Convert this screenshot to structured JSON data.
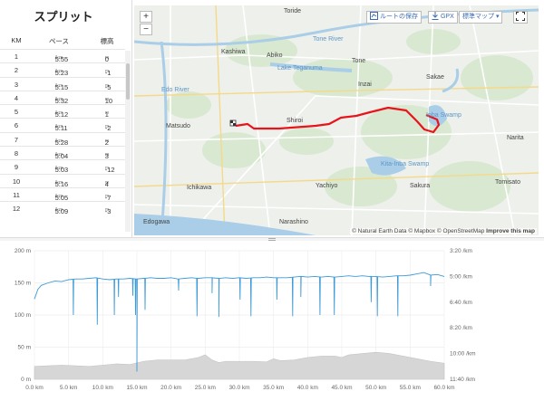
{
  "splits": {
    "title": "スプリット",
    "headers": {
      "km": "KM",
      "pace": "ペース",
      "elev": "標高"
    },
    "pace_unit": "/km",
    "elev_unit": "m",
    "rows": [
      {
        "km": "1",
        "pace": "5:55",
        "elev": "0"
      },
      {
        "km": "2",
        "pace": "5:23",
        "elev": "-1"
      },
      {
        "km": "3",
        "pace": "5:15",
        "elev": "-5"
      },
      {
        "km": "4",
        "pace": "5:32",
        "elev": "10"
      },
      {
        "km": "5",
        "pace": "5:12",
        "elev": "1"
      },
      {
        "km": "6",
        "pace": "5:11",
        "elev": "-2"
      },
      {
        "km": "7",
        "pace": "5:28",
        "elev": "2"
      },
      {
        "km": "8",
        "pace": "5:04",
        "elev": "3"
      },
      {
        "km": "9",
        "pace": "5:03",
        "elev": "-12"
      },
      {
        "km": "10",
        "pace": "5:16",
        "elev": "4"
      },
      {
        "km": "11",
        "pace": "5:05",
        "elev": "-7"
      },
      {
        "km": "12",
        "pace": "5:09",
        "elev": "-3"
      }
    ]
  },
  "map": {
    "zoom_in": "+",
    "zoom_out": "−",
    "save_route": "ルートの保存",
    "gpx": "GPX",
    "map_type": "標準マップ",
    "attribution": {
      "natural_earth": "© Natural Earth Data",
      "mapbox": "© Mapbox",
      "osm": "© OpenStreetMap",
      "improve": "Improve this map"
    },
    "labels": {
      "toride": "Toride",
      "kashiwa": "Kashiwa",
      "abiko": "Abiko",
      "tone": "Tone",
      "tone_river": "Tone River",
      "lake_teganuma": "Lake Teganuma",
      "sakae": "Sakae",
      "edo_river": "Edo River",
      "inzai": "Inzai",
      "matsudo": "Matsudo",
      "shiroi": "Shiroi",
      "inba_swamp": "Inba Swamp",
      "narita": "Narita",
      "ichikawa": "Ichikawa",
      "yachiyo": "Yachiyo",
      "sakura": "Sakura",
      "tomisato": "Tomisato",
      "edogawa": "Edogawa",
      "narashino": "Narashino",
      "kita_inba_swamp": "Kita-Inba Swamp"
    },
    "colors": {
      "route": "#e8141b",
      "water": "#aacde8",
      "land": "#eef0ec",
      "green": "#d8e8cf"
    }
  },
  "chart_data": {
    "type": "line",
    "x_label_unit": "km",
    "x_ticks": [
      "0.0 km",
      "5.0 km",
      "10.0 km",
      "15.0 km",
      "20.0 km",
      "25.0 km",
      "30.0 km",
      "35.0 km",
      "40.0 km",
      "45.0 km",
      "50.0 km",
      "55.0 km",
      "60.0 km"
    ],
    "y_left_ticks": [
      "200 m",
      "150 m",
      "100 m",
      "50 m",
      "0 m"
    ],
    "y_right_ticks": [
      "3:20 /km",
      "5:00 /km",
      "6:40 /km",
      "8:20 /km",
      "10:00 /km",
      "11:40 /km"
    ],
    "xlim": [
      0,
      60
    ],
    "ylim_left": [
      0,
      200
    ],
    "series": [
      {
        "kind": "elevation",
        "x": [
          0,
          2,
          4,
          6,
          8,
          10,
          12,
          14,
          16,
          18,
          20,
          22,
          24,
          25,
          26,
          27,
          28,
          30,
          32,
          34,
          35,
          36,
          38,
          40,
          42,
          44,
          45,
          46,
          48,
          50,
          52,
          54,
          56,
          58,
          60
        ],
        "y": [
          20,
          21,
          22,
          21,
          20,
          22,
          24,
          23,
          28,
          30,
          30,
          30,
          34,
          38,
          30,
          26,
          28,
          28,
          28,
          27,
          32,
          29,
          30,
          34,
          36,
          36,
          34,
          38,
          40,
          42,
          40,
          36,
          32,
          28,
          25
        ]
      },
      {
        "kind": "pace",
        "x": [
          0,
          0.5,
          1,
          2,
          3,
          4,
          5,
          6,
          7,
          8,
          9,
          10,
          11,
          12,
          13,
          14,
          15,
          16,
          17,
          18,
          19,
          20,
          21,
          22,
          23,
          24,
          25,
          26,
          27,
          28,
          29,
          30,
          31,
          32,
          33,
          34,
          35,
          36,
          37,
          38,
          39,
          40,
          41,
          42,
          43,
          44,
          45,
          46,
          47,
          48,
          49,
          50,
          51,
          52,
          53,
          54,
          55,
          56,
          57,
          58,
          59,
          60
        ],
        "y": [
          125,
          140,
          146,
          150,
          153,
          152,
          155,
          156,
          156,
          157,
          158,
          156,
          155,
          156,
          156,
          157,
          156,
          157,
          158,
          157,
          157,
          158,
          156,
          157,
          158,
          157,
          158,
          158,
          157,
          158,
          157,
          158,
          157,
          158,
          158,
          159,
          158,
          158,
          158,
          159,
          160,
          159,
          160,
          159,
          160,
          159,
          160,
          161,
          160,
          161,
          160,
          160,
          159,
          160,
          161,
          161,
          162,
          164,
          166,
          162,
          163,
          160
        ]
      }
    ],
    "pace_spikes": [
      {
        "x": 5.7,
        "y": 100
      },
      {
        "x": 9.2,
        "y": 85
      },
      {
        "x": 11.7,
        "y": 100
      },
      {
        "x": 12.3,
        "y": 128
      },
      {
        "x": 14.4,
        "y": 130
      },
      {
        "x": 14.8,
        "y": 100
      },
      {
        "x": 15.0,
        "y": 12
      },
      {
        "x": 16.2,
        "y": 108
      },
      {
        "x": 21.1,
        "y": 138
      },
      {
        "x": 23.8,
        "y": 98
      },
      {
        "x": 26.0,
        "y": 134
      },
      {
        "x": 27.0,
        "y": 97
      },
      {
        "x": 30.1,
        "y": 124
      },
      {
        "x": 31.7,
        "y": 98
      },
      {
        "x": 35.5,
        "y": 124
      },
      {
        "x": 37.8,
        "y": 98
      },
      {
        "x": 39.0,
        "y": 128
      },
      {
        "x": 41.8,
        "y": 100
      },
      {
        "x": 43.9,
        "y": 100
      },
      {
        "x": 49.3,
        "y": 120
      },
      {
        "x": 50.2,
        "y": 98
      },
      {
        "x": 53.2,
        "y": 98
      },
      {
        "x": 58.0,
        "y": 145
      }
    ]
  }
}
